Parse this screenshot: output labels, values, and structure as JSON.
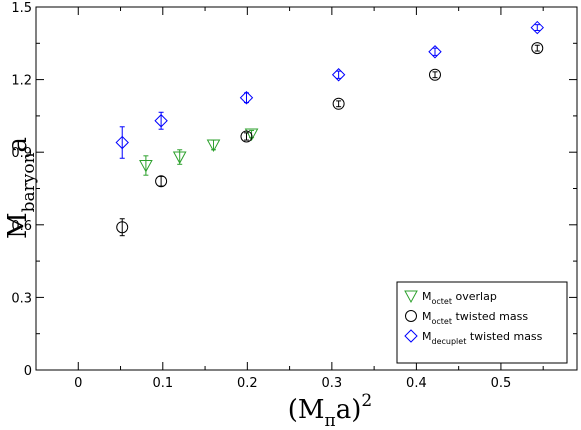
{
  "chart_data": {
    "type": "scatter",
    "xlabel": {
      "main": "(M",
      "sub": "π",
      "after": "a)",
      "sup": "2"
    },
    "ylabel": {
      "main": "M",
      "sub": "baryon",
      "after": "a"
    },
    "xlim": [
      -0.05,
      0.59
    ],
    "ylim": [
      0,
      1.5
    ],
    "xticks": [
      0,
      0.1,
      0.2,
      0.3,
      0.4,
      0.5
    ],
    "xtick_labels": [
      "0",
      "0.1",
      "0.2",
      "0.3",
      "0.4",
      "0.5"
    ],
    "yticks": [
      0,
      0.3,
      0.6,
      0.9,
      1.2,
      1.5
    ],
    "ytick_labels": [
      "0",
      "0.3",
      "0.6",
      "0.9",
      "1.2",
      "1.5"
    ],
    "grid": false,
    "legend_position": "bottom-right",
    "series": [
      {
        "marker": "triangle-down",
        "color": "#2ca02c",
        "legend": {
          "main": "M",
          "sub": "octet",
          "after": " overlap"
        },
        "points": [
          {
            "x": 0.08,
            "y": 0.845,
            "err": 0.04
          },
          {
            "x": 0.12,
            "y": 0.88,
            "err": 0.03
          },
          {
            "x": 0.16,
            "y": 0.93,
            "err": 0.02
          },
          {
            "x": 0.205,
            "y": 0.975,
            "err": 0.015
          }
        ]
      },
      {
        "marker": "circle",
        "color": "#000000",
        "legend": {
          "main": "M",
          "sub": "octet",
          "after": " twisted mass"
        },
        "points": [
          {
            "x": 0.052,
            "y": 0.59,
            "err": 0.035
          },
          {
            "x": 0.098,
            "y": 0.78,
            "err": 0.02
          },
          {
            "x": 0.199,
            "y": 0.965,
            "err": 0.015
          },
          {
            "x": 0.308,
            "y": 1.1,
            "err": 0.012
          },
          {
            "x": 0.422,
            "y": 1.22,
            "err": 0.012
          },
          {
            "x": 0.543,
            "y": 1.33,
            "err": 0.012
          }
        ]
      },
      {
        "marker": "diamond",
        "color": "#0000ff",
        "legend": {
          "main": "M",
          "sub": "decuplet",
          "after": " twisted mass"
        },
        "points": [
          {
            "x": 0.052,
            "y": 0.94,
            "err": 0.065
          },
          {
            "x": 0.098,
            "y": 1.03,
            "err": 0.035
          },
          {
            "x": 0.199,
            "y": 1.125,
            "err": 0.02
          },
          {
            "x": 0.308,
            "y": 1.22,
            "err": 0.015
          },
          {
            "x": 0.422,
            "y": 1.315,
            "err": 0.015
          },
          {
            "x": 0.543,
            "y": 1.415,
            "err": 0.012
          }
        ]
      }
    ]
  }
}
